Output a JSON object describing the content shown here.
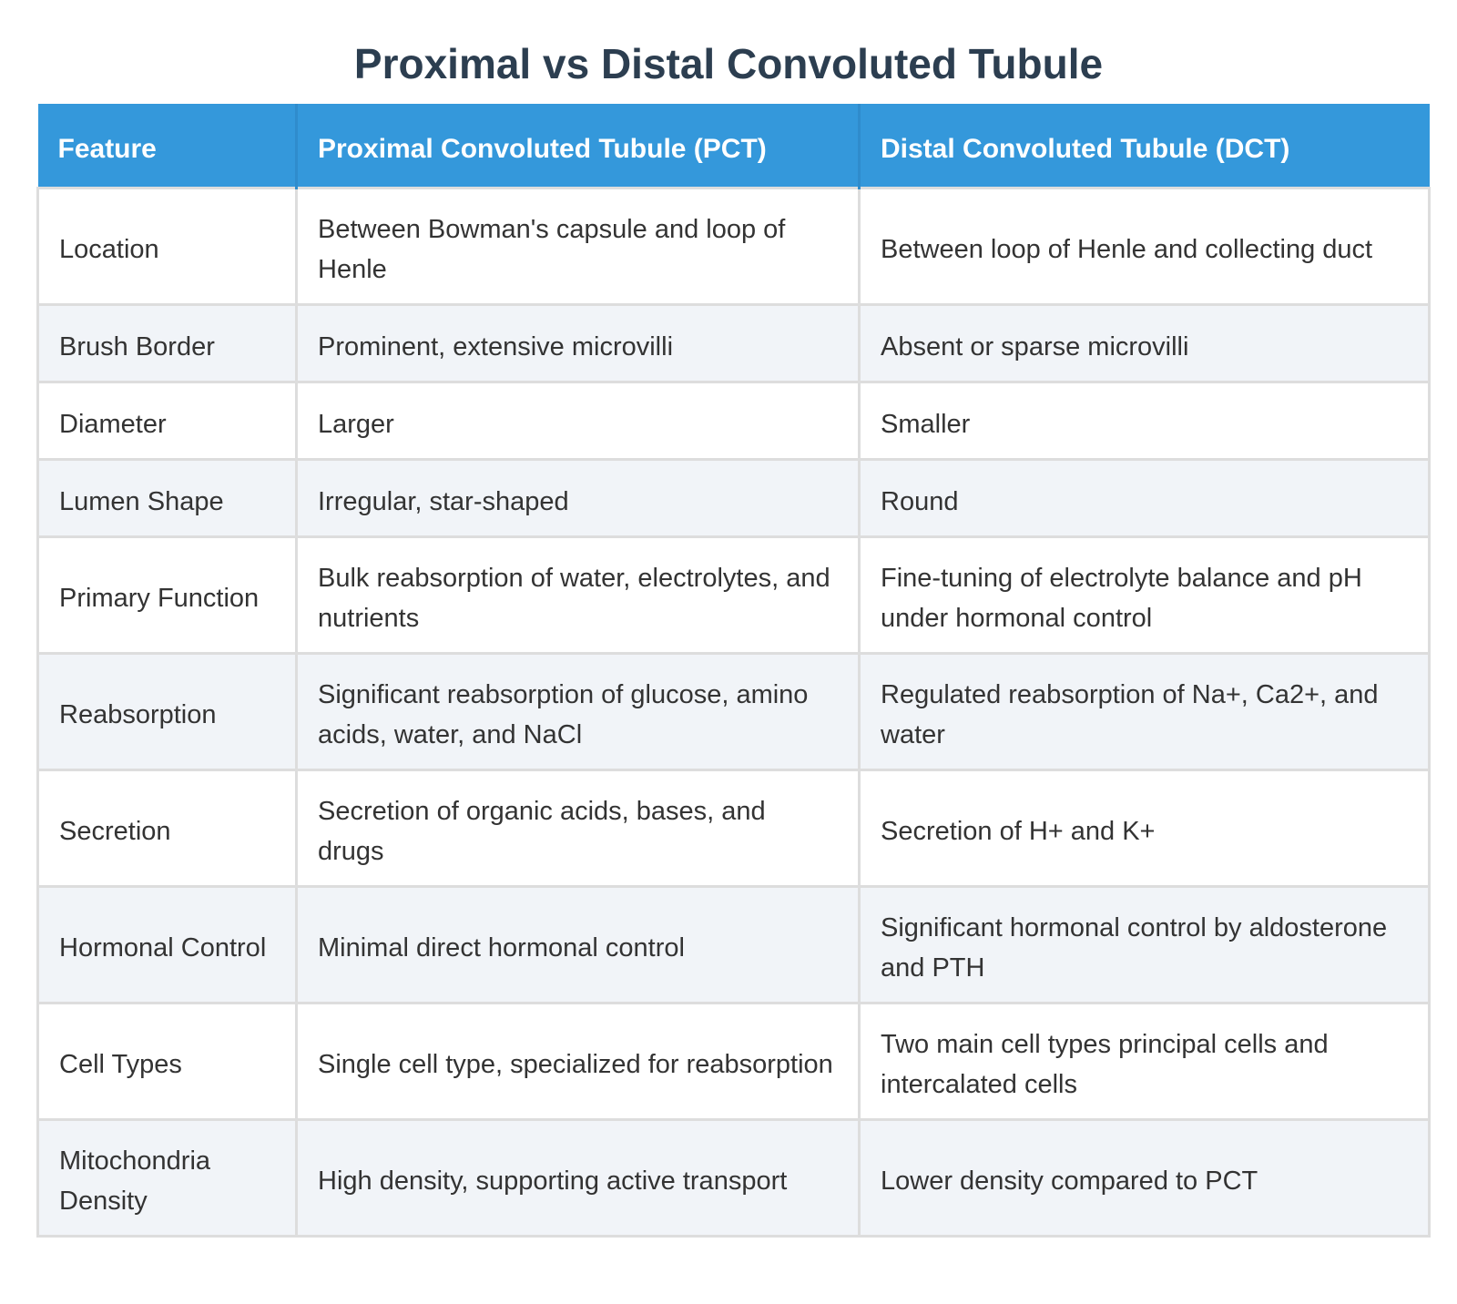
{
  "title": "Proximal vs Distal Convoluted Tubule",
  "table": {
    "headers": [
      "Feature",
      "Proximal Convoluted Tubule (PCT)",
      "Distal Convoluted Tubule (DCT)"
    ],
    "rows": [
      [
        "Location",
        "Between Bowman's capsule and loop of Henle",
        "Between loop of Henle and collecting duct"
      ],
      [
        "Brush Border",
        "Prominent, extensive microvilli",
        "Absent or sparse microvilli"
      ],
      [
        "Diameter",
        "Larger",
        "Smaller"
      ],
      [
        "Lumen Shape",
        "Irregular, star-shaped",
        "Round"
      ],
      [
        "Primary Function",
        "Bulk reabsorption of water, electrolytes, and nutrients",
        "Fine-tuning of electrolyte balance and pH under hormonal control"
      ],
      [
        "Reabsorption",
        "Significant reabsorption of glucose, amino acids, water, and NaCl",
        "Regulated reabsorption of Na+, Ca2+, and water"
      ],
      [
        "Secretion",
        "Secretion of organic acids, bases, and drugs",
        "Secretion of H+ and K+"
      ],
      [
        "Hormonal Control",
        "Minimal direct hormonal control",
        "Significant hormonal control by aldosterone and PTH"
      ],
      [
        "Cell Types",
        "Single cell type, specialized for reabsorption",
        "Two main cell types principal cells and intercalated cells"
      ],
      [
        "Mitochondria Density",
        "High density, supporting active transport",
        "Lower density compared to PCT"
      ]
    ]
  },
  "colors": {
    "title": "#2c3e50",
    "header_bg": "#3498db",
    "header_text": "#ffffff",
    "row_alt_bg": "#f1f4f8",
    "border": "#dddddd"
  }
}
